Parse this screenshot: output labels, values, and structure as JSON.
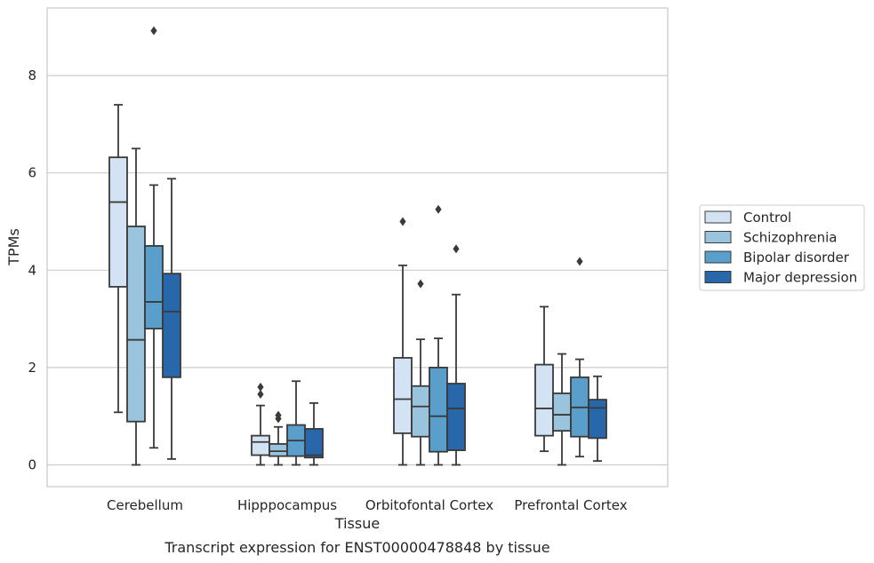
{
  "chart_data": {
    "type": "box",
    "categories": [
      "Cerebellum",
      "Hipppocampus",
      "Orbitofontal Cortex",
      "Prefrontal Cortex"
    ],
    "xlabel": "Tissue",
    "ylabel": "TPMs",
    "caption": "Transcript expression for ENST00000478848 by tissue",
    "ylim": [
      -0.45,
      9.3
    ],
    "yticks": [
      0,
      2,
      4,
      6,
      8
    ],
    "grid": true,
    "legend_position": "right",
    "series": [
      {
        "name": "Control",
        "color": "#d3e3f3",
        "boxes": [
          {
            "whisker_low": 1.08,
            "q1": 3.66,
            "median": 5.4,
            "q3": 6.32,
            "whisker_high": 7.4,
            "outliers": []
          },
          {
            "whisker_low": 0.0,
            "q1": 0.2,
            "median": 0.47,
            "q3": 0.6,
            "whisker_high": 1.22,
            "outliers": [
              1.6,
              1.45
            ]
          },
          {
            "whisker_low": 0.0,
            "q1": 0.65,
            "median": 1.35,
            "q3": 2.2,
            "whisker_high": 4.1,
            "outliers": [
              5.0
            ]
          },
          {
            "whisker_low": 0.28,
            "q1": 0.6,
            "median": 1.16,
            "q3": 2.06,
            "whisker_high": 3.25,
            "outliers": []
          }
        ]
      },
      {
        "name": "Schizophrenia",
        "color": "#9ac3de",
        "boxes": [
          {
            "whisker_low": 0.0,
            "q1": 0.89,
            "median": 2.57,
            "q3": 4.9,
            "whisker_high": 6.5,
            "outliers": []
          },
          {
            "whisker_low": 0.0,
            "q1": 0.18,
            "median": 0.28,
            "q3": 0.43,
            "whisker_high": 0.78,
            "outliers": [
              1.02,
              0.95
            ]
          },
          {
            "whisker_low": 0.0,
            "q1": 0.58,
            "median": 1.2,
            "q3": 1.62,
            "whisker_high": 2.58,
            "outliers": [
              3.72
            ]
          },
          {
            "whisker_low": 0.0,
            "q1": 0.7,
            "median": 1.03,
            "q3": 1.47,
            "whisker_high": 2.28,
            "outliers": []
          }
        ]
      },
      {
        "name": "Bipolar disorder",
        "color": "#5a9ecb",
        "boxes": [
          {
            "whisker_low": 0.35,
            "q1": 2.8,
            "median": 3.35,
            "q3": 4.5,
            "whisker_high": 5.75,
            "outliers": [
              8.92
            ]
          },
          {
            "whisker_low": 0.0,
            "q1": 0.18,
            "median": 0.5,
            "q3": 0.82,
            "whisker_high": 1.72,
            "outliers": []
          },
          {
            "whisker_low": 0.0,
            "q1": 0.27,
            "median": 1.0,
            "q3": 2.0,
            "whisker_high": 2.6,
            "outliers": [
              5.25
            ]
          },
          {
            "whisker_low": 0.17,
            "q1": 0.58,
            "median": 1.18,
            "q3": 1.8,
            "whisker_high": 2.17,
            "outliers": [
              4.18
            ]
          }
        ]
      },
      {
        "name": "Major depression",
        "color": "#2767aa",
        "boxes": [
          {
            "whisker_low": 0.12,
            "q1": 1.8,
            "median": 3.15,
            "q3": 3.93,
            "whisker_high": 5.88,
            "outliers": []
          },
          {
            "whisker_low": 0.0,
            "q1": 0.15,
            "median": 0.2,
            "q3": 0.74,
            "whisker_high": 1.27,
            "outliers": []
          },
          {
            "whisker_low": 0.0,
            "q1": 0.3,
            "median": 1.16,
            "q3": 1.67,
            "whisker_high": 3.5,
            "outliers": [
              4.44
            ]
          },
          {
            "whisker_low": 0.08,
            "q1": 0.55,
            "median": 1.17,
            "q3": 1.34,
            "whisker_high": 1.82,
            "outliers": []
          }
        ]
      }
    ]
  }
}
